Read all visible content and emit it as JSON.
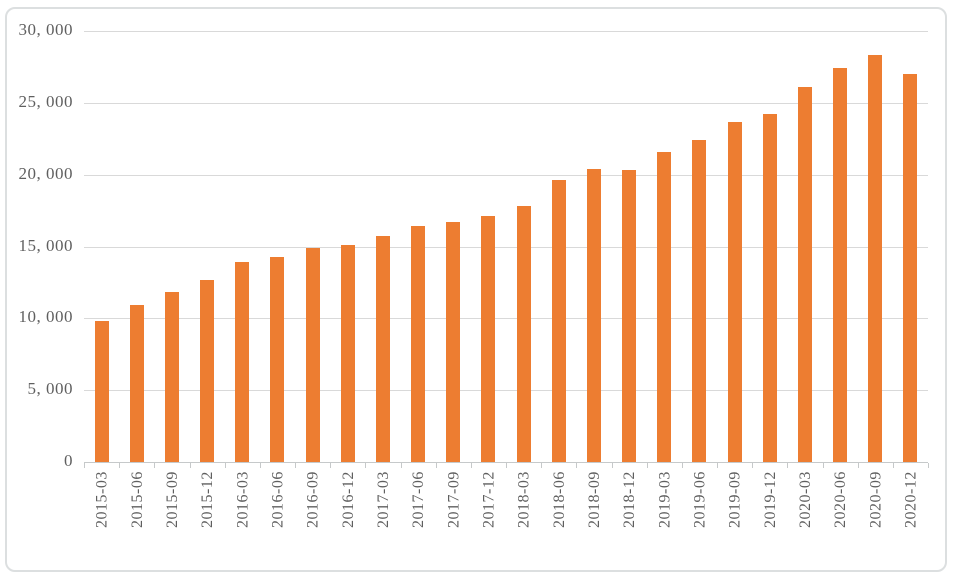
{
  "chart_data": {
    "type": "bar",
    "categories": [
      "2015-03",
      "2015-06",
      "2015-09",
      "2015-12",
      "2016-03",
      "2016-06",
      "2016-09",
      "2016-12",
      "2017-03",
      "2017-06",
      "2017-09",
      "2017-12",
      "2018-03",
      "2018-06",
      "2018-09",
      "2018-12",
      "2019-03",
      "2019-06",
      "2019-09",
      "2019-12",
      "2020-03",
      "2020-06",
      "2020-09",
      "2020-12"
    ],
    "values": [
      9800,
      10900,
      11800,
      12700,
      13900,
      14300,
      14900,
      15100,
      15700,
      16400,
      16700,
      17100,
      17800,
      19600,
      20400,
      20300,
      21600,
      22400,
      23700,
      24200,
      26100,
      27400,
      28300,
      27000
    ],
    "y_axis": {
      "min": 0,
      "max": 30000,
      "step": 5000,
      "tick_labels": [
        "0",
        "5, 000",
        "10, 000",
        "15, 000",
        "20, 000",
        "25, 000",
        "30, 000"
      ]
    },
    "grid": true,
    "legend": false,
    "colors": {
      "bar": "#ED7D31",
      "gridline": "#D9D9D9",
      "axis_line": "#C6C9CA",
      "tick": "#C6C9CA",
      "text": "#5F5F5F",
      "frame_border": "#DCDFE0"
    }
  }
}
